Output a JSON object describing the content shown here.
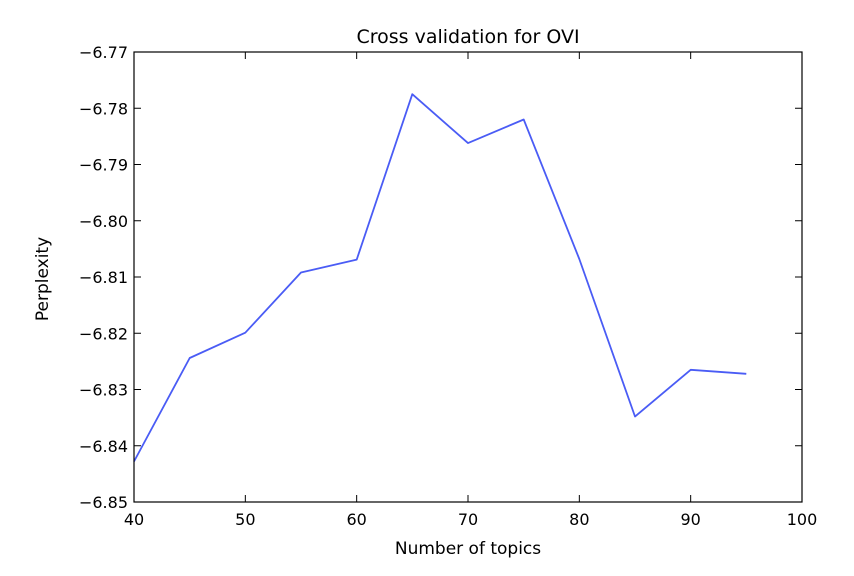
{
  "chart_data": {
    "type": "line",
    "title": "Cross validation for OVI",
    "xlabel": "Number of topics",
    "ylabel": "Perplexity",
    "xlim": [
      40,
      100
    ],
    "ylim": [
      -6.85,
      -6.77
    ],
    "x_ticks": [
      40,
      50,
      60,
      70,
      80,
      90,
      100
    ],
    "x_tick_labels": [
      "40",
      "50",
      "60",
      "70",
      "80",
      "90",
      "100"
    ],
    "y_ticks": [
      -6.85,
      -6.84,
      -6.83,
      -6.82,
      -6.81,
      -6.8,
      -6.79,
      -6.78,
      -6.77
    ],
    "y_tick_labels": [
      "−6.85",
      "−6.84",
      "−6.83",
      "−6.82",
      "−6.81",
      "−6.80",
      "−6.79",
      "−6.78",
      "−6.77"
    ],
    "grid": false,
    "legend": "none",
    "series": [
      {
        "color": "#4a5cf5",
        "x": [
          40,
          45,
          50,
          55,
          60,
          65,
          70,
          75,
          80,
          85,
          90,
          95
        ],
        "y": [
          -6.8428,
          -6.8244,
          -6.8199,
          -6.8092,
          -6.8069,
          -6.7775,
          -6.7862,
          -6.782,
          -6.8068,
          -6.8348,
          -6.8265,
          -6.8272
        ]
      }
    ]
  }
}
